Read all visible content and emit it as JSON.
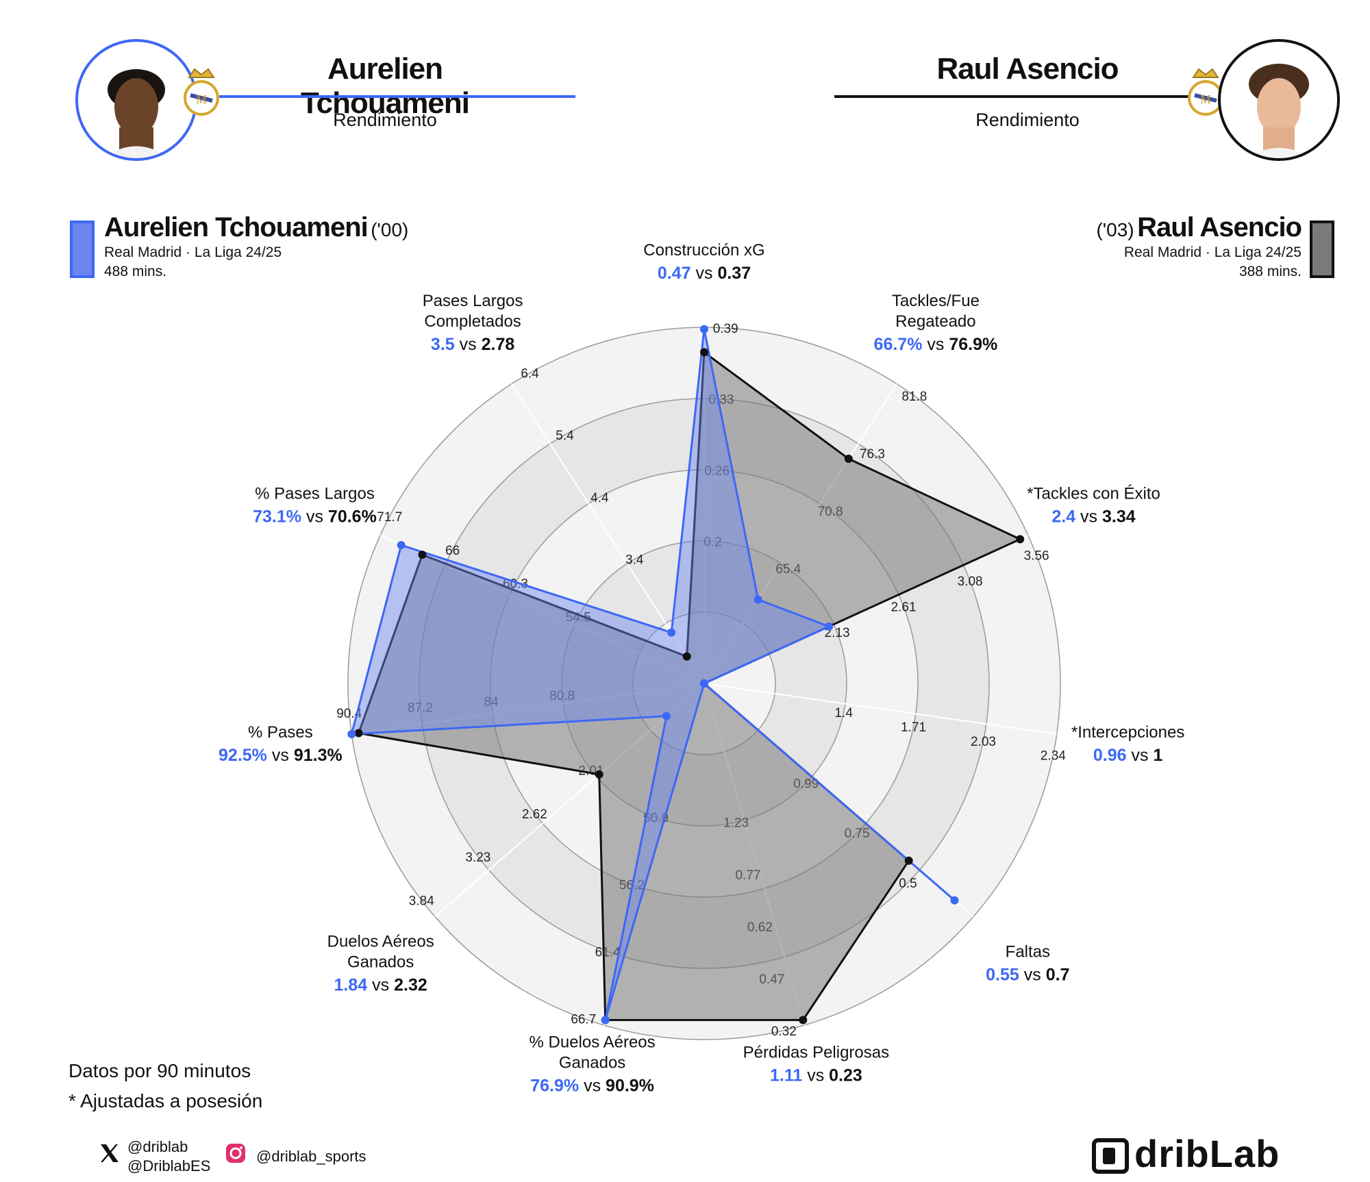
{
  "header": {
    "left_player": "Aurelien Tchouameni",
    "left_subtitle": "Rendimiento",
    "right_player": "Raul Asencio",
    "right_subtitle": "Rendimiento"
  },
  "legend": {
    "left": {
      "name": "Aurelien Tchouameni",
      "year": "('00)",
      "team": "Real Madrid · La Liga 24/25",
      "minutes": "488 mins."
    },
    "right": {
      "name": "Raul Asencio",
      "year": "('03)",
      "team": "Real Madrid · La Liga 24/25",
      "minutes": "388 mins."
    }
  },
  "colors": {
    "player1": "#3d68f5",
    "player1_fill": "#6b84f0",
    "player2": "#111111",
    "player2_fill": "#7a7a7a",
    "ring_fill": "#f3f3f3",
    "ring_fill_alt": "#e6e6e6"
  },
  "chart_data": {
    "type": "radar",
    "vs_word": "vs",
    "axes": [
      {
        "label": [
          "Construcción xG"
        ],
        "p1_label": "0.47",
        "p2_label": "0.37",
        "p1": 0.47,
        "p2": 0.37,
        "ticks": [
          "0.2",
          "0.26",
          "0.33",
          "0.39"
        ]
      },
      {
        "label": [
          "Tackles/Fue",
          "Regateado"
        ],
        "p1_label": "66.7%",
        "p2_label": "76.9%",
        "p1": 66.7,
        "p2": 76.9,
        "ticks": [
          "65.4",
          "70.8",
          "76.3",
          "81.8"
        ]
      },
      {
        "label": [
          "*Tackles con Éxito"
        ],
        "p1_label": "2.4",
        "p2_label": "3.34",
        "p1": 2.4,
        "p2": 3.34,
        "ticks": [
          "2.13",
          "2.61",
          "3.08",
          "3.56"
        ]
      },
      {
        "label": [
          "*Intercepciones"
        ],
        "p1_label": "0.96",
        "p2_label": "1",
        "p1": 0.96,
        "p2": 1.0,
        "ticks": [
          "1.4",
          "1.71",
          "2.03",
          "2.34"
        ]
      },
      {
        "label": [
          "Faltas"
        ],
        "p1_label": "0.55",
        "p2_label": "0.7",
        "p1": 0.55,
        "p2": 0.7,
        "ticks": [
          "0.99",
          "0.75",
          "0.5"
        ]
      },
      {
        "label": [
          "Pérdidas Peligrosas"
        ],
        "p1_label": "1.11",
        "p2_label": "0.23",
        "p1": 1.11,
        "p2": 0.23,
        "ticks": [
          "1.23",
          "0.77",
          "0.62",
          "0.47",
          "0.32"
        ]
      },
      {
        "label": [
          "% Duelos Aéreos",
          "Ganados"
        ],
        "p1_label": "76.9%",
        "p2_label": "90.9%",
        "p1": 76.9,
        "p2": 90.9,
        "ticks": [
          "50.9",
          "56.2",
          "61.4",
          "66.7"
        ]
      },
      {
        "label": [
          "Duelos Aéreos",
          "Ganados"
        ],
        "p1_label": "1.84",
        "p2_label": "2.32",
        "p1": 1.84,
        "p2": 2.32,
        "ticks": [
          "2.01",
          "2.62",
          "3.23",
          "3.84"
        ]
      },
      {
        "label": [
          "% Pases"
        ],
        "p1_label": "92.5%",
        "p2_label": "91.3%",
        "p1": 92.5,
        "p2": 91.3,
        "ticks": [
          "80.8",
          "84",
          "87.2",
          "90.4"
        ]
      },
      {
        "label": [
          "% Pases Largos"
        ],
        "p1_label": "73.1%",
        "p2_label": "70.6%",
        "p1": 73.1,
        "p2": 70.6,
        "ticks": [
          "54.5",
          "60.3",
          "66",
          "71.7"
        ]
      },
      {
        "label": [
          "Pases Largos",
          "Completados"
        ],
        "p1_label": "3.5",
        "p2_label": "2.78",
        "p1": 3.5,
        "p2": 2.78,
        "ticks": [
          "3.4",
          "4.4",
          "5.4",
          "6.4"
        ]
      }
    ],
    "p1_norm": [
      0.995,
      0.28,
      0.385,
      0.0,
      0.93,
      0.0,
      0.985,
      0.14,
      1.0,
      0.935,
      0.17
    ],
    "p2_norm": [
      0.93,
      0.75,
      0.975,
      0.0,
      0.76,
      0.985,
      0.985,
      0.39,
      0.98,
      0.87,
      0.09
    ]
  },
  "footer": {
    "note1": "Datos por 90 minutos",
    "note2": "* Ajustadas a posesión",
    "twitter1": "@driblab",
    "twitter2": "@DriblabES",
    "instagram": "@driblab_sports",
    "brand": "dribLab"
  }
}
